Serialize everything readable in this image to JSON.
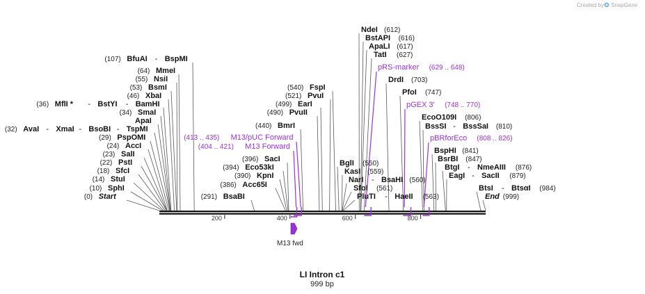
{
  "watermark": {
    "text": "Created by",
    "brand": "SnapGene"
  },
  "map": {
    "title": "LI Intron c1",
    "length_label": "999 bp",
    "length": 999,
    "ticks": [
      "200",
      "400",
      "600",
      "800"
    ]
  },
  "colors": {
    "primer": "#9b30d9",
    "feature": "#9b30d9",
    "backbone": "#111111"
  },
  "sites": [
    {
      "label": [
        [
          "pos",
          "(0)"
        ],
        [
          "ital",
          "Start"
        ]
      ],
      "bp": 0
    },
    {
      "label": [
        [
          "pos",
          "(10)"
        ],
        [
          "en",
          "SphI"
        ]
      ],
      "bp": 10
    },
    {
      "label": [
        [
          "pos",
          "(14)"
        ],
        [
          "en",
          "StuI"
        ]
      ],
      "bp": 14
    },
    {
      "label": [
        [
          "pos",
          "(18)"
        ],
        [
          "en",
          "SfcI"
        ]
      ],
      "bp": 18
    },
    {
      "label": [
        [
          "pos",
          "(22)"
        ],
        [
          "en",
          "PstI"
        ]
      ],
      "bp": 22
    },
    {
      "label": [
        [
          "pos",
          "(23)"
        ],
        [
          "en",
          "SalI"
        ]
      ],
      "bp": 23
    },
    {
      "label": [
        [
          "pos",
          "(24)"
        ],
        [
          "en",
          "AccI"
        ]
      ],
      "bp": 24
    },
    {
      "label": [
        [
          "pos",
          "(29)"
        ],
        [
          "en",
          "PspOMI"
        ]
      ],
      "bp": 29
    },
    {
      "label": [
        [
          "pos",
          "(32)"
        ],
        [
          "en",
          "AvaI"
        ],
        [
          "sep",
          "-"
        ],
        [
          "en",
          "XmaI"
        ],
        [
          "sep",
          "-"
        ],
        [
          "en",
          "BsoBI"
        ],
        [
          "sep",
          "-"
        ],
        [
          "en",
          "TspMI"
        ]
      ],
      "bp": 32
    },
    {
      "label": [
        [
          "en",
          "ApaI"
        ]
      ],
      "bp": 33
    },
    {
      "label": [
        [
          "pos",
          "(34)"
        ],
        [
          "en",
          "SmaI"
        ]
      ],
      "bp": 34
    },
    {
      "label": [
        [
          "pos",
          "(36)"
        ],
        [
          "en",
          "MflI *"
        ],
        [
          "sep",
          "-"
        ],
        [
          "en",
          "BstYI"
        ],
        [
          "sep",
          "-"
        ],
        [
          "en",
          "BamHI"
        ]
      ],
      "bp": 36
    },
    {
      "label": [
        [
          "pos",
          "(46)"
        ],
        [
          "en",
          "XbaI"
        ]
      ],
      "bp": 46
    },
    {
      "label": [
        [
          "pos",
          "(53)"
        ],
        [
          "en",
          "BsmI"
        ]
      ],
      "bp": 53
    },
    {
      "label": [
        [
          "pos",
          "(55)"
        ],
        [
          "en",
          "NsiI"
        ]
      ],
      "bp": 55
    },
    {
      "label": [
        [
          "pos",
          "(64)"
        ],
        [
          "en",
          "MmeI"
        ]
      ],
      "bp": 64
    },
    {
      "label": [
        [
          "pos",
          "(107)"
        ],
        [
          "en",
          "BfuAI"
        ],
        [
          "sep",
          "-"
        ],
        [
          "en",
          "BspMI"
        ]
      ],
      "bp": 107
    },
    {
      "label": [
        [
          "pos",
          "(291)"
        ],
        [
          "en",
          "BsaBI"
        ]
      ],
      "bp": 291
    },
    {
      "label": [
        [
          "pos",
          "(386)"
        ],
        [
          "en",
          "Acc65I"
        ]
      ],
      "bp": 386
    },
    {
      "label": [
        [
          "pos",
          "(390)"
        ],
        [
          "en",
          "KpnI"
        ]
      ],
      "bp": 390
    },
    {
      "label": [
        [
          "pos",
          "(394)"
        ],
        [
          "en",
          "Eco53kI"
        ]
      ],
      "bp": 394
    },
    {
      "label": [
        [
          "pos",
          "(396)"
        ],
        [
          "en",
          "SacI"
        ]
      ],
      "bp": 396
    },
    {
      "label": [
        [
          "pos",
          "(440)"
        ],
        [
          "en",
          "BmrI"
        ]
      ],
      "bp": 440
    },
    {
      "label": [
        [
          "pos",
          "(490)"
        ],
        [
          "en",
          "PvuII"
        ]
      ],
      "bp": 490
    },
    {
      "label": [
        [
          "pos",
          "(499)"
        ],
        [
          "en",
          "EarI"
        ]
      ],
      "bp": 499
    },
    {
      "label": [
        [
          "pos",
          "(521)"
        ],
        [
          "en",
          "PvuI"
        ]
      ],
      "bp": 521
    },
    {
      "label": [
        [
          "pos",
          "(540)"
        ],
        [
          "en",
          "FspI"
        ]
      ],
      "bp": 540
    },
    {
      "label": [
        [
          "en",
          "NdeI"
        ],
        [
          "pos",
          "(612)"
        ]
      ],
      "bp": 612
    },
    {
      "label": [
        [
          "en",
          "BstAPI"
        ],
        [
          "pos",
          "(616)"
        ]
      ],
      "bp": 616
    },
    {
      "label": [
        [
          "en",
          "ApaLI"
        ],
        [
          "pos",
          "(617)"
        ]
      ],
      "bp": 617
    },
    {
      "label": [
        [
          "en",
          "TatI"
        ],
        [
          "pos",
          "(627)"
        ]
      ],
      "bp": 627
    },
    {
      "label": [
        [
          "en",
          "DrdI"
        ],
        [
          "pos",
          "(703)"
        ]
      ],
      "bp": 703
    },
    {
      "label": [
        [
          "en",
          "PfoI"
        ],
        [
          "pos",
          "(747)"
        ]
      ],
      "bp": 747
    },
    {
      "label": [
        [
          "en",
          "EcoO109I"
        ],
        [
          "pos",
          "(806)"
        ]
      ],
      "bp": 806
    },
    {
      "label": [
        [
          "en",
          "BssSI"
        ],
        [
          "sep",
          "-"
        ],
        [
          "en",
          "BssSaI"
        ],
        [
          "pos",
          "(810)"
        ]
      ],
      "bp": 810
    },
    {
      "label": [
        [
          "en",
          "BspHI"
        ],
        [
          "pos",
          "(841)"
        ]
      ],
      "bp": 841
    },
    {
      "label": [
        [
          "en",
          "BsrBI"
        ],
        [
          "pos",
          "(847)"
        ]
      ],
      "bp": 847
    },
    {
      "label": [
        [
          "en",
          "BtgI"
        ],
        [
          "sep",
          "-"
        ],
        [
          "en",
          "NmeAIII"
        ],
        [
          "pos",
          "(876)"
        ]
      ],
      "bp": 876
    },
    {
      "label": [
        [
          "en",
          "EagI"
        ],
        [
          "sep",
          "-"
        ],
        [
          "en",
          "SacII"
        ],
        [
          "pos",
          "(879)"
        ]
      ],
      "bp": 879
    },
    {
      "label": [
        [
          "en",
          "BglI"
        ],
        [
          "pos",
          "(550)"
        ]
      ],
      "bp": 550
    },
    {
      "label": [
        [
          "en",
          "KasI"
        ],
        [
          "pos",
          "(559)"
        ]
      ],
      "bp": 559
    },
    {
      "label": [
        [
          "en",
          "NarI"
        ],
        [
          "sep",
          "-"
        ],
        [
          "en",
          "BsaHI"
        ],
        [
          "pos",
          "(560)"
        ]
      ],
      "bp": 560
    },
    {
      "label": [
        [
          "en",
          "SfoI"
        ],
        [
          "pos",
          "(561)"
        ]
      ],
      "bp": 561
    },
    {
      "label": [
        [
          "en",
          "PluTI"
        ],
        [
          "sep",
          "-"
        ],
        [
          "en",
          "HaeII"
        ],
        [
          "pos",
          "(563)"
        ]
      ],
      "bp": 563
    },
    {
      "label": [
        [
          "en",
          "BtsI"
        ],
        [
          "sep",
          "-"
        ],
        [
          "en",
          "BtsαI"
        ],
        [
          "pos",
          "(984)"
        ]
      ],
      "bp": 984
    },
    {
      "label": [
        [
          "ital",
          "End"
        ],
        [
          "pos",
          "(999)"
        ]
      ],
      "bp": 999
    }
  ],
  "primers": [
    {
      "name": "M13/pUC Forward",
      "range": "(413 .. 435)",
      "start": 413,
      "end": 435
    },
    {
      "name": "M13 Forward",
      "range": "(404 .. 421)",
      "start": 404,
      "end": 421
    },
    {
      "name": "pRS-marker",
      "range": "(629 .. 648)",
      "start": 629,
      "end": 648
    },
    {
      "name": "pGEX 3'",
      "range": "(748 .. 770)",
      "start": 748,
      "end": 770
    },
    {
      "name": "pBRforEco",
      "range": "(808 .. 826)",
      "start": 808,
      "end": 826
    }
  ],
  "features": [
    {
      "name": "M13 fwd",
      "start": 404,
      "end": 421
    }
  ]
}
